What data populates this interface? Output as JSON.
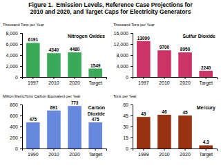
{
  "title": "Figure 1.  Emission Levels, Reference Case Projections for\n2010 and 2020, and Target Caps for Electricity Generators",
  "chart_data": [
    {
      "type": "bar",
      "title": "Nitrogen Oxides",
      "ylabel": "Thousand Tons per Year",
      "categories": [
        "1997",
        "2010",
        "2020",
        "Target"
      ],
      "values": [
        6191,
        4340,
        4480,
        1549
      ],
      "color": "#3aaa5a",
      "ylim": [
        0,
        8000
      ],
      "yticks": [
        0,
        {
          "value": 2000,
          "label": "2,000"
        },
        {
          "value": 4000,
          "label": "4,000"
        },
        {
          "value": 6000,
          "label": "6,000"
        },
        {
          "value": 8000,
          "label": "8,000"
        }
      ],
      "data_labels": true,
      "grid": false
    },
    {
      "type": "bar",
      "title": "Sulfur Dioxide",
      "ylabel": "Thousand Tons per Year",
      "categories": [
        "1997",
        "2010",
        "2020",
        "Target"
      ],
      "values": [
        13090,
        9700,
        8950,
        2240
      ],
      "color": "#cc3366",
      "ylim": [
        0,
        16000
      ],
      "yticks": [
        0,
        {
          "value": 4000,
          "label": "4,000"
        },
        {
          "value": 8000,
          "label": "8,000"
        },
        {
          "value": 12000,
          "label": "12,000"
        },
        {
          "value": 16000,
          "label": "16,000"
        }
      ],
      "data_labels": true,
      "grid": false
    },
    {
      "type": "bar",
      "title": "Carbon\nDioxide",
      "ylabel": "Million MetricTons Carbon Equivalent per Year",
      "categories": [
        "1990",
        "2010",
        "2020",
        "Target"
      ],
      "values": [
        475,
        691,
        773,
        475
      ],
      "color": "#6688dd",
      "ylim": [
        0,
        800
      ],
      "yticks": [
        0,
        200,
        400,
        600,
        800
      ],
      "data_labels": true,
      "grid": false
    },
    {
      "type": "bar",
      "title": "Mercury",
      "ylabel": "Tons per Year",
      "categories": [
        "1999",
        "2010",
        "2020",
        "Target"
      ],
      "values": [
        43,
        46,
        45,
        4.3
      ],
      "color": "#993311",
      "ylim": [
        0,
        60
      ],
      "yticks": [
        0,
        15,
        30,
        45,
        60
      ],
      "data_labels": true,
      "grid": false
    }
  ]
}
